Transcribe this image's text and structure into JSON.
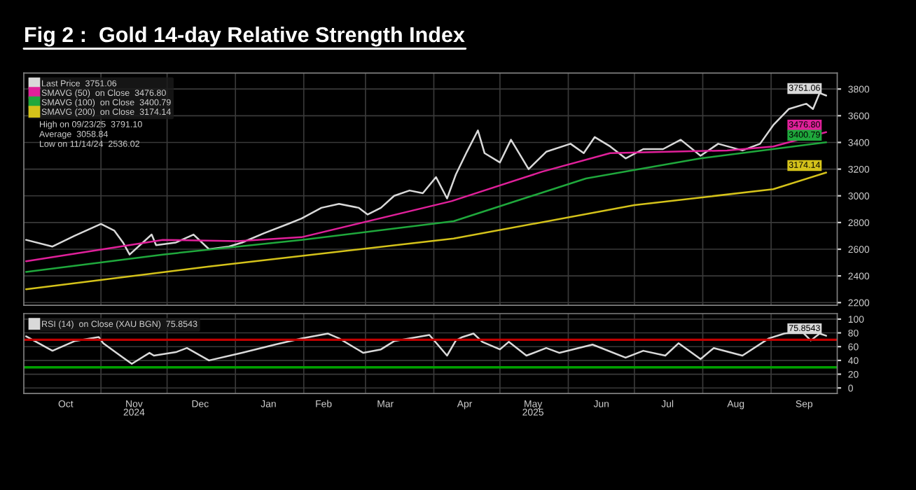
{
  "chart_data": [
    {
      "type": "line",
      "title": "Fig 2 :  Gold 14-day Relative Strength Index",
      "xlim": [
        "2024-09-27",
        "2025-10-01"
      ],
      "xticks": [
        {
          "value": "2024-11-01",
          "label": null
        },
        {
          "value": "2024-12-01",
          "label": null
        },
        {
          "value": "2025-01-01",
          "label": null
        },
        {
          "value": "2025-02-01",
          "label": null
        },
        {
          "value": "2025-03-01",
          "label": null
        },
        {
          "value": "2025-04-01",
          "label": null
        },
        {
          "value": "2025-05-01",
          "label": null
        },
        {
          "value": "2025-06-01",
          "label": null
        },
        {
          "value": "2025-07-01",
          "label": null
        },
        {
          "value": "2025-08-01",
          "label": null
        },
        {
          "value": "2025-09-01",
          "label": null
        }
      ],
      "ylim": [
        2180,
        3920
      ],
      "yticks": [
        2200,
        2400,
        2600,
        2800,
        3000,
        3200,
        3400,
        3600,
        3800
      ],
      "tick_labels": "y",
      "grid": true,
      "legend": "top left",
      "annotations": [
        "High on 09/23/25  3791.10",
        "Average  3058.84",
        "Low on 11/14/24  2536.02"
      ],
      "series": [
        {
          "name": "Last Price  3751.06",
          "color": "#d9d9d9",
          "x": [
            "2024-09-28",
            "2024-10-10",
            "2024-10-20",
            "2024-11-01",
            "2024-11-07",
            "2024-11-11",
            "2024-11-14",
            "2024-11-24",
            "2024-11-26",
            "2024-12-05",
            "2024-12-13",
            "2024-12-20",
            "2024-12-29",
            "2025-01-04",
            "2025-01-14",
            "2025-01-25",
            "2025-01-31",
            "2025-02-09",
            "2025-02-17",
            "2025-02-26",
            "2025-03-02",
            "2025-03-08",
            "2025-03-14",
            "2025-03-21",
            "2025-03-27",
            "2025-04-02",
            "2025-04-07",
            "2025-04-11",
            "2025-04-16",
            "2025-04-21",
            "2025-04-24",
            "2025-05-01",
            "2025-05-06",
            "2025-05-14",
            "2025-05-22",
            "2025-06-02",
            "2025-06-08",
            "2025-06-13",
            "2025-06-20",
            "2025-06-27",
            "2025-07-05",
            "2025-07-14",
            "2025-07-22",
            "2025-07-31",
            "2025-08-08",
            "2025-08-19",
            "2025-08-27",
            "2025-09-02",
            "2025-09-09",
            "2025-09-17",
            "2025-09-20",
            "2025-09-23",
            "2025-09-26"
          ],
          "values": [
            2670,
            2620,
            2700,
            2790,
            2740,
            2650,
            2560,
            2710,
            2630,
            2650,
            2710,
            2600,
            2620,
            2650,
            2720,
            2790,
            2830,
            2910,
            2940,
            2910,
            2860,
            2910,
            3000,
            3040,
            3020,
            3140,
            2980,
            3160,
            3330,
            3490,
            3320,
            3250,
            3420,
            3200,
            3330,
            3390,
            3320,
            3440,
            3370,
            3280,
            3350,
            3350,
            3420,
            3300,
            3390,
            3340,
            3390,
            3530,
            3650,
            3690,
            3650,
            3770,
            3751.06
          ],
          "value_labels": [
            null,
            null,
            null,
            null,
            null,
            null,
            null,
            null,
            null,
            null,
            null,
            null,
            null,
            null,
            null,
            null,
            null,
            null,
            null,
            null,
            null,
            null,
            null,
            null,
            null,
            null,
            null,
            null,
            null,
            null,
            null,
            null,
            null,
            null,
            null,
            null,
            null,
            null,
            null,
            null,
            null,
            null,
            null,
            null,
            null,
            null,
            null,
            null,
            null,
            null,
            null,
            null,
            "3751.06"
          ]
        },
        {
          "name": "SMAVG (50)  on Close  3476.80",
          "color": "#e0209a",
          "x": [
            "2024-09-28",
            "2024-11-29",
            "2025-01-02",
            "2025-01-31",
            "2025-04-09",
            "2025-05-20",
            "2025-06-20",
            "2025-08-12",
            "2025-09-02",
            "2025-09-26"
          ],
          "values": [
            2510,
            2670,
            2660,
            2690,
            2960,
            3180,
            3320,
            3340,
            3370,
            3476.8
          ],
          "value_labels": [
            null,
            null,
            null,
            null,
            null,
            null,
            null,
            null,
            null,
            "3476.80"
          ]
        },
        {
          "name": "SMAVG (100)  on Close  3400.79",
          "color": "#1fa83c",
          "x": [
            "2024-09-28",
            "2024-11-29",
            "2025-01-31",
            "2025-04-10",
            "2025-06-09",
            "2025-07-31",
            "2025-09-26"
          ],
          "values": [
            2430,
            2560,
            2670,
            2810,
            3130,
            3280,
            3400.79
          ],
          "value_labels": [
            null,
            null,
            null,
            null,
            null,
            null,
            "3400.79"
          ]
        },
        {
          "name": "SMAVG (200)  on Close  3174.14",
          "color": "#d4c21a",
          "x": [
            "2024-09-28",
            "2024-12-20",
            "2025-04-10",
            "2025-07-01",
            "2025-09-02",
            "2025-09-26"
          ],
          "values": [
            2300,
            2470,
            2680,
            2930,
            3050,
            3174.14
          ],
          "value_labels": [
            null,
            null,
            null,
            null,
            null,
            "3174.14"
          ]
        }
      ]
    },
    {
      "type": "line",
      "xlim": [
        "2024-09-27",
        "2025-10-01"
      ],
      "xticks": [
        {
          "value": "2024-10-16",
          "label": "Oct"
        },
        {
          "value": "2024-11-01",
          "label": null
        },
        {
          "value": "2024-11-16",
          "label": "Nov\n2024"
        },
        {
          "value": "2024-12-01",
          "label": null
        },
        {
          "value": "2024-12-16",
          "label": "Dec"
        },
        {
          "value": "2025-01-01",
          "label": null
        },
        {
          "value": "2025-01-16",
          "label": "Jan"
        },
        {
          "value": "2025-02-01",
          "label": null
        },
        {
          "value": "2025-02-10",
          "label": "Feb"
        },
        {
          "value": "2025-03-01",
          "label": null
        },
        {
          "value": "2025-03-10",
          "label": "Mar"
        },
        {
          "value": "2025-04-01",
          "label": null
        },
        {
          "value": "2025-04-15",
          "label": "Apr"
        },
        {
          "value": "2025-05-01",
          "label": null
        },
        {
          "value": "2025-05-16",
          "label": "May\n2025"
        },
        {
          "value": "2025-06-01",
          "label": null
        },
        {
          "value": "2025-06-16",
          "label": "Jun"
        },
        {
          "value": "2025-07-01",
          "label": null
        },
        {
          "value": "2025-07-16",
          "label": "Jul"
        },
        {
          "value": "2025-08-01",
          "label": null
        },
        {
          "value": "2025-08-16",
          "label": "Aug"
        },
        {
          "value": "2025-09-01",
          "label": null
        },
        {
          "value": "2025-09-16",
          "label": "Sep"
        }
      ],
      "ylim": [
        -8,
        108
      ],
      "yticks": [
        0,
        20,
        40,
        60,
        80,
        100
      ],
      "grid": true,
      "legend": "top left",
      "ref_lines": [
        {
          "axis": "y",
          "value": 70,
          "color": "#c00000"
        },
        {
          "axis": "y",
          "value": 30,
          "color": "#00a000"
        }
      ],
      "series": [
        {
          "name": "RSI (14)  on Close (XAU BGN)  75.8543",
          "color": "#d9d9d9",
          "x": [
            "2024-09-28",
            "2024-10-10",
            "2024-10-20",
            "2024-10-31",
            "2024-11-02",
            "2024-11-08",
            "2024-11-15",
            "2024-11-23",
            "2024-11-25",
            "2024-12-05",
            "2024-12-10",
            "2024-12-20",
            "2025-01-04",
            "2025-01-19",
            "2025-01-31",
            "2025-02-12",
            "2025-02-17",
            "2025-02-28",
            "2025-03-08",
            "2025-03-14",
            "2025-03-30",
            "2025-04-07",
            "2025-04-11",
            "2025-04-14",
            "2025-04-19",
            "2025-04-23",
            "2025-05-01",
            "2025-05-05",
            "2025-05-13",
            "2025-05-22",
            "2025-05-28",
            "2025-06-12",
            "2025-06-27",
            "2025-07-05",
            "2025-07-15",
            "2025-07-21",
            "2025-07-31",
            "2025-08-06",
            "2025-08-19",
            "2025-08-31",
            "2025-09-07",
            "2025-09-15",
            "2025-09-19",
            "2025-09-23",
            "2025-09-26"
          ],
          "values": [
            75,
            54,
            68,
            74,
            65,
            51,
            35,
            51,
            47,
            52,
            58,
            40,
            51,
            63,
            72,
            79,
            72,
            51,
            56,
            68,
            77,
            47,
            69,
            74,
            79,
            67,
            56,
            67,
            47,
            58,
            51,
            63,
            44,
            54,
            47,
            65,
            42,
            58,
            47,
            72,
            79,
            82,
            69,
            79,
            75.8543
          ],
          "value_labels": [
            null,
            null,
            null,
            null,
            null,
            null,
            null,
            null,
            null,
            null,
            null,
            null,
            null,
            null,
            null,
            null,
            null,
            null,
            null,
            null,
            null,
            null,
            null,
            null,
            null,
            null,
            null,
            null,
            null,
            null,
            null,
            null,
            null,
            null,
            null,
            null,
            null,
            null,
            null,
            null,
            null,
            null,
            null,
            null,
            "75.8543"
          ]
        }
      ]
    }
  ]
}
